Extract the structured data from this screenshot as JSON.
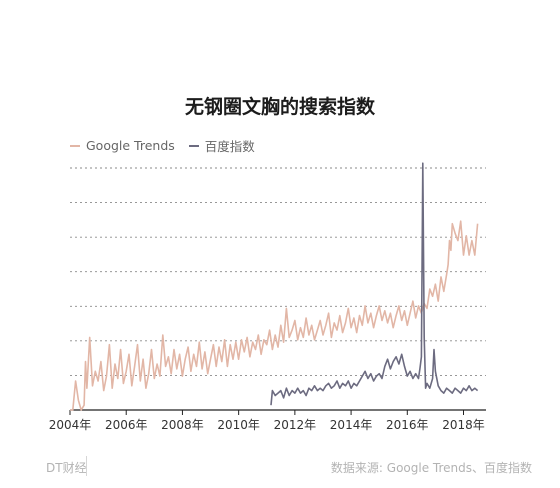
{
  "footer": {
    "brand": "DT财经",
    "source": "数据来源: Google Trends、百度指数"
  },
  "chart_data": {
    "type": "line",
    "title": "无钢圈文胸的搜索指数",
    "xlabel": "",
    "ylabel": "",
    "grid": true,
    "legend": "top-left",
    "xlim": [
      2004.0,
      2018.8
    ],
    "ylim": [
      0,
      100
    ],
    "x_ticks": [
      "2004年",
      "2006年",
      "2008年",
      "2010年",
      "2012年",
      "2014年",
      "2016年",
      "2018年"
    ],
    "series": [
      {
        "name": "Google Trends",
        "color": "#e2b6a6",
        "points": [
          [
            2004.0,
            0
          ],
          [
            2004.1,
            0
          ],
          [
            2004.2,
            12
          ],
          [
            2004.3,
            4
          ],
          [
            2004.4,
            0
          ],
          [
            2004.5,
            2
          ],
          [
            2004.55,
            20
          ],
          [
            2004.6,
            9
          ],
          [
            2004.7,
            30
          ],
          [
            2004.8,
            10
          ],
          [
            2004.9,
            16
          ],
          [
            2005.0,
            12
          ],
          [
            2005.1,
            20
          ],
          [
            2005.2,
            8
          ],
          [
            2005.3,
            14
          ],
          [
            2005.4,
            27
          ],
          [
            2005.5,
            9
          ],
          [
            2005.6,
            19
          ],
          [
            2005.7,
            13
          ],
          [
            2005.8,
            25
          ],
          [
            2005.9,
            11
          ],
          [
            2006.0,
            16
          ],
          [
            2006.1,
            23
          ],
          [
            2006.2,
            10
          ],
          [
            2006.3,
            18
          ],
          [
            2006.4,
            27
          ],
          [
            2006.5,
            12
          ],
          [
            2006.6,
            21
          ],
          [
            2006.7,
            9
          ],
          [
            2006.8,
            15
          ],
          [
            2006.9,
            25
          ],
          [
            2007.0,
            13
          ],
          [
            2007.1,
            19
          ],
          [
            2007.2,
            14
          ],
          [
            2007.3,
            31
          ],
          [
            2007.4,
            18
          ],
          [
            2007.5,
            22
          ],
          [
            2007.6,
            15
          ],
          [
            2007.7,
            25
          ],
          [
            2007.8,
            17
          ],
          [
            2007.9,
            23
          ],
          [
            2008.0,
            14
          ],
          [
            2008.1,
            21
          ],
          [
            2008.2,
            26
          ],
          [
            2008.3,
            16
          ],
          [
            2008.4,
            23
          ],
          [
            2008.5,
            18
          ],
          [
            2008.6,
            28
          ],
          [
            2008.7,
            17
          ],
          [
            2008.8,
            24
          ],
          [
            2008.9,
            15
          ],
          [
            2009.0,
            21
          ],
          [
            2009.1,
            27
          ],
          [
            2009.2,
            18
          ],
          [
            2009.3,
            26
          ],
          [
            2009.4,
            20
          ],
          [
            2009.5,
            29
          ],
          [
            2009.6,
            18
          ],
          [
            2009.7,
            27
          ],
          [
            2009.8,
            21
          ],
          [
            2009.9,
            28
          ],
          [
            2010.0,
            21
          ],
          [
            2010.1,
            29
          ],
          [
            2010.2,
            24
          ],
          [
            2010.3,
            30
          ],
          [
            2010.4,
            22
          ],
          [
            2010.5,
            28
          ],
          [
            2010.6,
            25
          ],
          [
            2010.7,
            31
          ],
          [
            2010.8,
            23
          ],
          [
            2010.9,
            29
          ],
          [
            2011.0,
            27
          ],
          [
            2011.1,
            33
          ],
          [
            2011.2,
            25
          ],
          [
            2011.3,
            31
          ],
          [
            2011.4,
            26
          ],
          [
            2011.5,
            35
          ],
          [
            2011.6,
            28
          ],
          [
            2011.7,
            42
          ],
          [
            2011.8,
            30
          ],
          [
            2011.9,
            33
          ],
          [
            2012.0,
            37
          ],
          [
            2012.1,
            29
          ],
          [
            2012.2,
            34
          ],
          [
            2012.3,
            30
          ],
          [
            2012.4,
            38
          ],
          [
            2012.5,
            31
          ],
          [
            2012.6,
            35
          ],
          [
            2012.7,
            29
          ],
          [
            2012.8,
            33
          ],
          [
            2012.9,
            37
          ],
          [
            2013.0,
            31
          ],
          [
            2013.1,
            35
          ],
          [
            2013.2,
            40
          ],
          [
            2013.3,
            30
          ],
          [
            2013.4,
            36
          ],
          [
            2013.5,
            33
          ],
          [
            2013.6,
            39
          ],
          [
            2013.7,
            32
          ],
          [
            2013.8,
            36
          ],
          [
            2013.9,
            42
          ],
          [
            2014.0,
            34
          ],
          [
            2014.1,
            38
          ],
          [
            2014.2,
            32
          ],
          [
            2014.3,
            39
          ],
          [
            2014.4,
            35
          ],
          [
            2014.5,
            43
          ],
          [
            2014.6,
            36
          ],
          [
            2014.7,
            40
          ],
          [
            2014.8,
            34
          ],
          [
            2014.9,
            39
          ],
          [
            2015.0,
            43
          ],
          [
            2015.1,
            37
          ],
          [
            2015.2,
            41
          ],
          [
            2015.3,
            36
          ],
          [
            2015.4,
            40
          ],
          [
            2015.5,
            34
          ],
          [
            2015.6,
            39
          ],
          [
            2015.7,
            43
          ],
          [
            2015.8,
            37
          ],
          [
            2015.9,
            41
          ],
          [
            2016.0,
            35
          ],
          [
            2016.1,
            40
          ],
          [
            2016.2,
            45
          ],
          [
            2016.3,
            38
          ],
          [
            2016.4,
            43
          ],
          [
            2016.5,
            40
          ],
          [
            2016.6,
            44
          ],
          [
            2016.7,
            42
          ],
          [
            2016.8,
            50
          ],
          [
            2016.9,
            47
          ],
          [
            2017.0,
            52
          ],
          [
            2017.1,
            45
          ],
          [
            2017.2,
            55
          ],
          [
            2017.3,
            49
          ],
          [
            2017.4,
            56
          ],
          [
            2017.45,
            60
          ],
          [
            2017.5,
            70
          ],
          [
            2017.55,
            66
          ],
          [
            2017.6,
            77
          ],
          [
            2017.7,
            73
          ],
          [
            2017.8,
            70
          ],
          [
            2017.9,
            78
          ],
          [
            2018.0,
            64
          ],
          [
            2018.1,
            72
          ],
          [
            2018.2,
            64
          ],
          [
            2018.3,
            70
          ],
          [
            2018.4,
            64
          ],
          [
            2018.5,
            77
          ]
        ]
      },
      {
        "name": "百度指数",
        "color": "#6c6b80",
        "points": [
          [
            2011.15,
            2
          ],
          [
            2011.2,
            8
          ],
          [
            2011.3,
            6
          ],
          [
            2011.4,
            7
          ],
          [
            2011.5,
            8
          ],
          [
            2011.6,
            5
          ],
          [
            2011.7,
            9
          ],
          [
            2011.8,
            6
          ],
          [
            2011.9,
            8
          ],
          [
            2012.0,
            7
          ],
          [
            2012.1,
            9
          ],
          [
            2012.2,
            7
          ],
          [
            2012.3,
            8
          ],
          [
            2012.4,
            6
          ],
          [
            2012.5,
            9
          ],
          [
            2012.6,
            8
          ],
          [
            2012.7,
            10
          ],
          [
            2012.8,
            8
          ],
          [
            2012.9,
            9
          ],
          [
            2013.0,
            8
          ],
          [
            2013.1,
            10
          ],
          [
            2013.2,
            11
          ],
          [
            2013.3,
            9
          ],
          [
            2013.4,
            10
          ],
          [
            2013.5,
            12
          ],
          [
            2013.6,
            9
          ],
          [
            2013.7,
            11
          ],
          [
            2013.8,
            10
          ],
          [
            2013.9,
            12
          ],
          [
            2014.0,
            9
          ],
          [
            2014.1,
            11
          ],
          [
            2014.2,
            10
          ],
          [
            2014.3,
            12
          ],
          [
            2014.4,
            14
          ],
          [
            2014.5,
            16
          ],
          [
            2014.6,
            13
          ],
          [
            2014.7,
            15
          ],
          [
            2014.8,
            12
          ],
          [
            2014.9,
            14
          ],
          [
            2015.0,
            15
          ],
          [
            2015.1,
            13
          ],
          [
            2015.2,
            18
          ],
          [
            2015.3,
            21
          ],
          [
            2015.4,
            17
          ],
          [
            2015.5,
            20
          ],
          [
            2015.6,
            22
          ],
          [
            2015.7,
            19
          ],
          [
            2015.8,
            23
          ],
          [
            2015.9,
            18
          ],
          [
            2016.0,
            14
          ],
          [
            2016.1,
            16
          ],
          [
            2016.2,
            13
          ],
          [
            2016.3,
            15
          ],
          [
            2016.4,
            13
          ],
          [
            2016.45,
            17
          ],
          [
            2016.5,
            22
          ],
          [
            2016.55,
            102
          ],
          [
            2016.6,
            30
          ],
          [
            2016.65,
            9
          ],
          [
            2016.7,
            11
          ],
          [
            2016.8,
            9
          ],
          [
            2016.9,
            13
          ],
          [
            2016.95,
            25
          ],
          [
            2017.0,
            16
          ],
          [
            2017.1,
            10
          ],
          [
            2017.2,
            8
          ],
          [
            2017.3,
            7
          ],
          [
            2017.4,
            9
          ],
          [
            2017.5,
            8
          ],
          [
            2017.6,
            7
          ],
          [
            2017.7,
            9
          ],
          [
            2017.8,
            8
          ],
          [
            2017.9,
            7
          ],
          [
            2018.0,
            9
          ],
          [
            2018.1,
            8
          ],
          [
            2018.2,
            10
          ],
          [
            2018.3,
            8
          ],
          [
            2018.4,
            9
          ],
          [
            2018.5,
            8
          ]
        ]
      }
    ]
  }
}
